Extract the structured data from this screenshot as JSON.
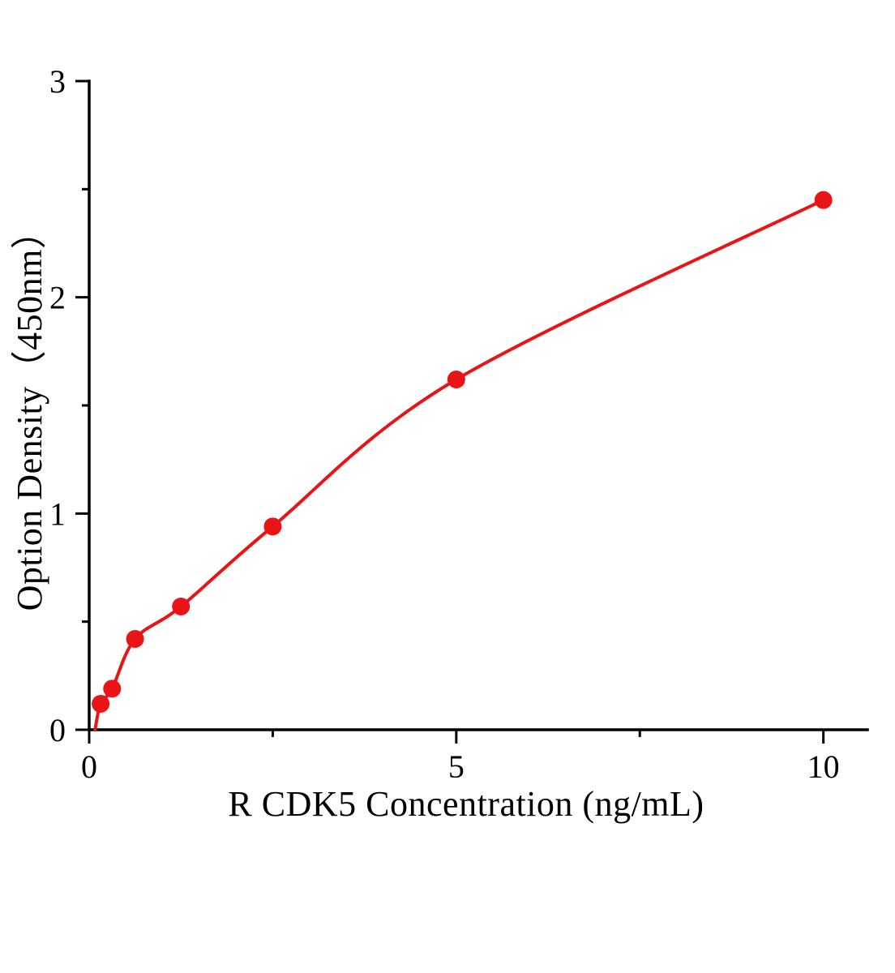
{
  "figure": {
    "background": "#ffffff"
  },
  "chart_data": {
    "type": "scatter",
    "title": "",
    "xlabel": "R CDK5  Concentration (ng/mL)",
    "ylabel": "Option Density（450nm）",
    "x": [
      0.156,
      0.3125,
      0.625,
      1.25,
      2.5,
      5,
      10
    ],
    "y": [
      0.12,
      0.19,
      0.42,
      0.57,
      0.94,
      1.62,
      2.45
    ],
    "curve": {
      "start_x": 0.08,
      "start_y": 0
    },
    "xlim": [
      0,
      10.6
    ],
    "ylim": [
      0,
      3
    ],
    "x_major_ticks": [
      0,
      5,
      10
    ],
    "x_tick_labels": [
      "0",
      "5",
      "10"
    ],
    "x_minor_ticks": [
      2.5,
      7.5
    ],
    "y_major_ticks": [
      0,
      1,
      2,
      3
    ],
    "y_tick_labels": [
      "0",
      "1",
      "2",
      "3"
    ],
    "y_minor_ticks": [
      0.5,
      1.5,
      2.5
    ],
    "grid": false,
    "legend": null,
    "colors": {
      "point": "#e81416",
      "line": "#e81416",
      "axis": "#000000",
      "text": "#000000"
    }
  }
}
